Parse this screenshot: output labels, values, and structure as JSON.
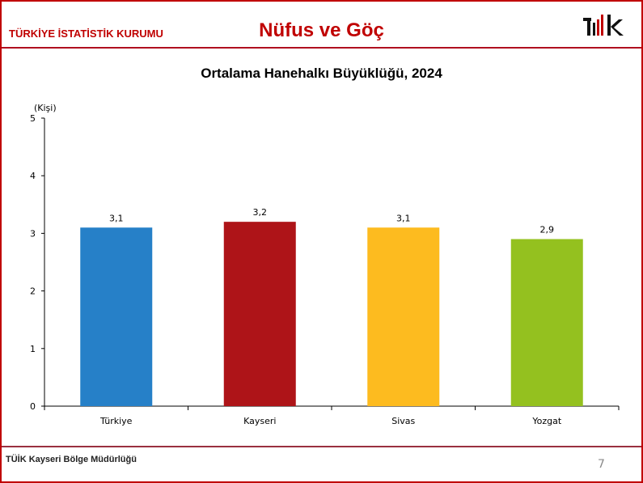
{
  "header": {
    "org": "TÜRKİYE İSTATİSTİK KURUMU",
    "title": "Nüfus ve Göç",
    "logo": "TÜİK"
  },
  "footer": {
    "text": "TÜİK Kayseri Bölge Müdürlüğü",
    "page_number": "7"
  },
  "colors": {
    "accent": "#c00000"
  },
  "chart_data": {
    "type": "bar",
    "title": "Ortalama Hanehalkı Büyüklüğü, 2024",
    "ylabel": "(Kişi)",
    "xlabel": "",
    "categories": [
      "Türkiye",
      "Kayseri",
      "Sivas",
      "Yozgat"
    ],
    "values": [
      3.1,
      3.2,
      3.1,
      2.9
    ],
    "data_labels": [
      "3,1",
      "3,2",
      "3,1",
      "2,9"
    ],
    "bar_colors": [
      "#2680c8",
      "#ae1418",
      "#fdbb1f",
      "#94c11f"
    ],
    "ylim": [
      0,
      5
    ],
    "yticks": [
      0,
      1,
      2,
      3,
      4,
      5
    ],
    "grid": false,
    "legend": "none"
  }
}
